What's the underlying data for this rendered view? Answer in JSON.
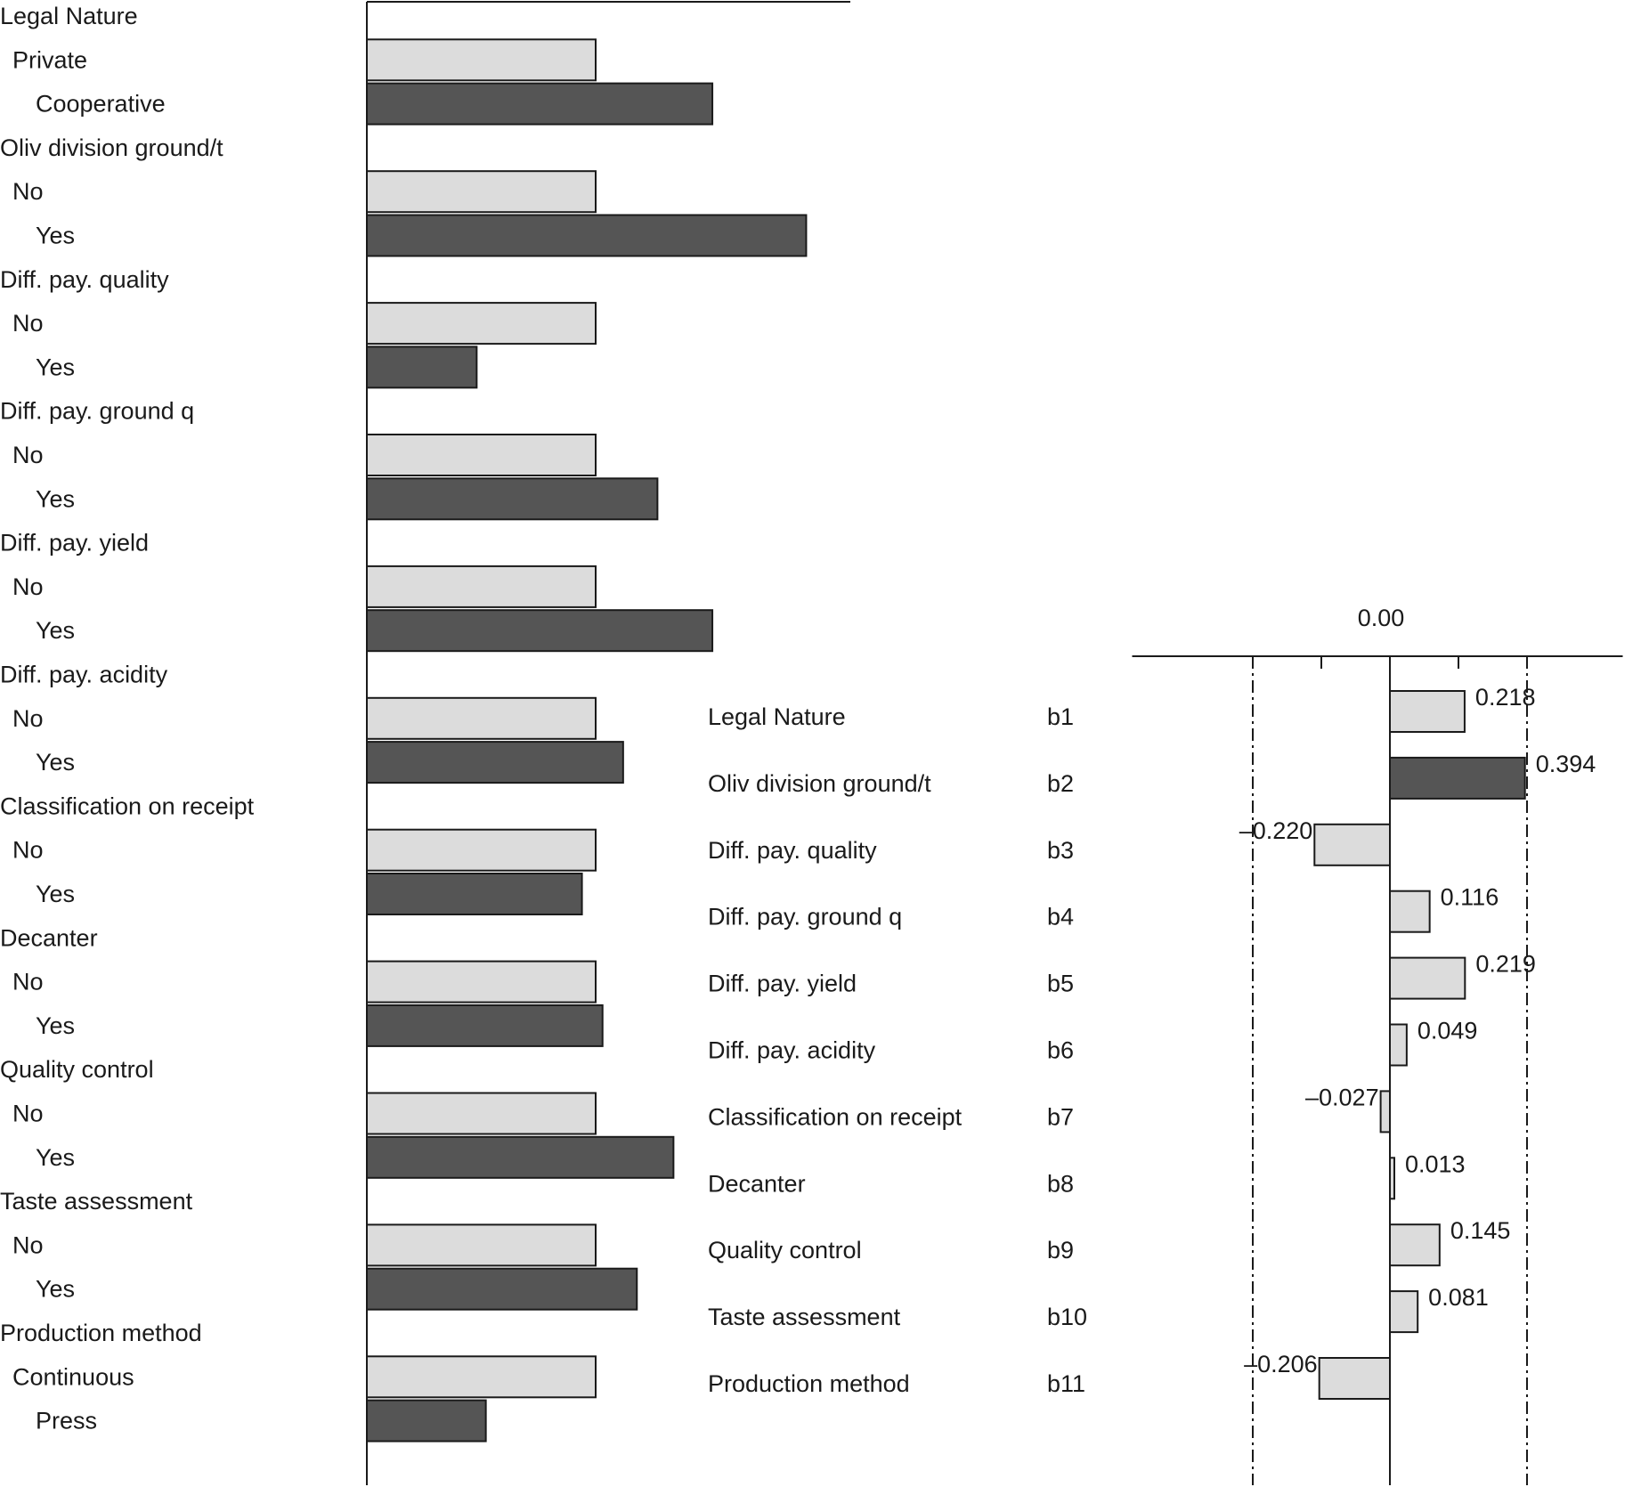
{
  "colors": {
    "reference": "#dcdcdc",
    "contrast": "#555555",
    "stroke": "#1a1a1a"
  },
  "chart_data": [
    {
      "type": "bar",
      "orientation": "horizontal",
      "groups": [
        {
          "label": "Legal Nature",
          "levels": [
            {
              "label": "Private",
              "value": 1.0,
              "indent": 1
            },
            {
              "label": "Cooperative",
              "value": 1.51,
              "indent": 2
            }
          ]
        },
        {
          "label": "Oliv division ground/t",
          "levels": [
            {
              "label": "No",
              "value": 1.0,
              "indent": 1
            },
            {
              "label": "Yes",
              "value": 1.92,
              "indent": 2
            }
          ]
        },
        {
          "label": "Diff. pay. quality",
          "levels": [
            {
              "label": "No",
              "value": 1.0,
              "indent": 1
            },
            {
              "label": "Yes",
              "value": 0.48,
              "indent": 2
            }
          ]
        },
        {
          "label": "Diff. pay. ground q",
          "levels": [
            {
              "label": "No",
              "value": 1.0,
              "indent": 1
            },
            {
              "label": "Yes",
              "value": 1.27,
              "indent": 2
            }
          ]
        },
        {
          "label": "Diff. pay. yield",
          "levels": [
            {
              "label": "No",
              "value": 1.0,
              "indent": 1
            },
            {
              "label": "Yes",
              "value": 1.51,
              "indent": 2
            }
          ]
        },
        {
          "label": "Diff. pay. acidity",
          "levels": [
            {
              "label": "No",
              "value": 1.0,
              "indent": 1
            },
            {
              "label": "Yes",
              "value": 1.12,
              "indent": 2
            }
          ]
        },
        {
          "label": "Classification on receipt",
          "levels": [
            {
              "label": "No",
              "value": 1.0,
              "indent": 1
            },
            {
              "label": "Yes",
              "value": 0.94,
              "indent": 2
            }
          ]
        },
        {
          "label": "Decanter",
          "levels": [
            {
              "label": "No",
              "value": 1.0,
              "indent": 1
            },
            {
              "label": "Yes",
              "value": 1.03,
              "indent": 2
            }
          ]
        },
        {
          "label": "Quality control",
          "levels": [
            {
              "label": "No",
              "value": 1.0,
              "indent": 1
            },
            {
              "label": "Yes",
              "value": 1.34,
              "indent": 2
            }
          ]
        },
        {
          "label": "Taste assessment",
          "levels": [
            {
              "label": "No",
              "value": 1.0,
              "indent": 1
            },
            {
              "label": "Yes",
              "value": 1.18,
              "indent": 2
            }
          ]
        },
        {
          "label": "Production method",
          "levels": [
            {
              "label": "Continuous",
              "value": 1.0,
              "indent": 1
            },
            {
              "label": "Press",
              "value": 0.52,
              "indent": 2
            }
          ]
        }
      ]
    },
    {
      "type": "bar",
      "orientation": "horizontal",
      "zero_label": "0.00",
      "xlim": [
        -0.7,
        0.7
      ],
      "reference_lines": [
        -0.4,
        0.4
      ],
      "items": [
        {
          "name": "Legal Nature",
          "code": "b1",
          "value": 0.218,
          "label": "0.218"
        },
        {
          "name": "Oliv division ground/t",
          "code": "b2",
          "value": 0.394,
          "label": "0.394"
        },
        {
          "name": "Diff. pay. quality",
          "code": "b3",
          "value": -0.22,
          "label": "–0.220"
        },
        {
          "name": "Diff. pay. ground q",
          "code": "b4",
          "value": 0.116,
          "label": "0.116"
        },
        {
          "name": "Diff. pay. yield",
          "code": "b5",
          "value": 0.219,
          "label": "0.219"
        },
        {
          "name": "Diff. pay. acidity",
          "code": "b6",
          "value": 0.049,
          "label": "0.049"
        },
        {
          "name": "Classification on receipt",
          "code": "b7",
          "value": -0.027,
          "label": "–0.027"
        },
        {
          "name": "Decanter",
          "code": "b8",
          "value": 0.013,
          "label": "0.013"
        },
        {
          "name": "Quality control",
          "code": "b9",
          "value": 0.145,
          "label": "0.145"
        },
        {
          "name": "Taste assessment",
          "code": "b10",
          "value": 0.081,
          "label": "0.081"
        },
        {
          "name": "Production method",
          "code": "b11",
          "value": -0.206,
          "label": "–0.206"
        }
      ]
    }
  ]
}
